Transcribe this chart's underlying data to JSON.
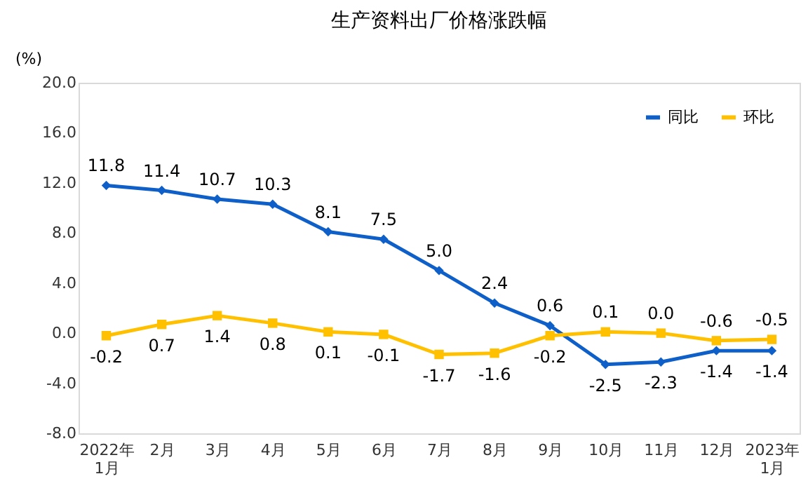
{
  "chart_data": {
    "type": "line",
    "title": "生产资料出厂价格涨跌幅",
    "ylabel": "(%)",
    "categories": [
      "2022年 1月",
      "2月",
      "3月",
      "4月",
      "5月",
      "6月",
      "7月",
      "8月",
      "9月",
      "10月",
      "11月",
      "12月",
      "2023年 1月"
    ],
    "series": [
      {
        "name": "同比",
        "color": "#0f5fc9",
        "marker": "diamond",
        "values": [
          11.8,
          11.4,
          10.7,
          10.3,
          8.1,
          7.5,
          5.0,
          2.4,
          0.6,
          -2.5,
          -2.3,
          -1.4,
          -1.4
        ],
        "value_labels": [
          "11.8",
          "11.4",
          "10.7",
          "10.3",
          "8.1",
          "7.5",
          "5.0",
          "2.4",
          "0.6",
          "-2.5",
          "-2.3",
          "-1.4",
          "-1.4"
        ]
      },
      {
        "name": "环比",
        "color": "#ffc000",
        "marker": "square",
        "values": [
          -0.2,
          0.7,
          1.4,
          0.8,
          0.1,
          -0.1,
          -1.7,
          -1.6,
          -0.2,
          0.1,
          0.0,
          -0.6,
          -0.5
        ],
        "value_labels": [
          "-0.2",
          "0.7",
          "1.4",
          "0.8",
          "0.1",
          "-0.1",
          "-1.7",
          "-1.6",
          "-0.2",
          "0.1",
          "0.0",
          "-0.6",
          "-0.5"
        ]
      }
    ],
    "ylim": [
      -8.0,
      20.0
    ],
    "yticks": [
      {
        "value": -8,
        "label": "-8.0"
      },
      {
        "value": -4,
        "label": "-4.0"
      },
      {
        "value": 0,
        "label": "0.0"
      },
      {
        "value": 4,
        "label": "4.0"
      },
      {
        "value": 8,
        "label": "8.0"
      },
      {
        "value": 12,
        "label": "12.0"
      },
      {
        "value": 16,
        "label": "16.0"
      },
      {
        "value": 20,
        "label": "20.0"
      }
    ],
    "data_labels": true,
    "grid": false,
    "legend": "top right",
    "line_style": "solid"
  }
}
